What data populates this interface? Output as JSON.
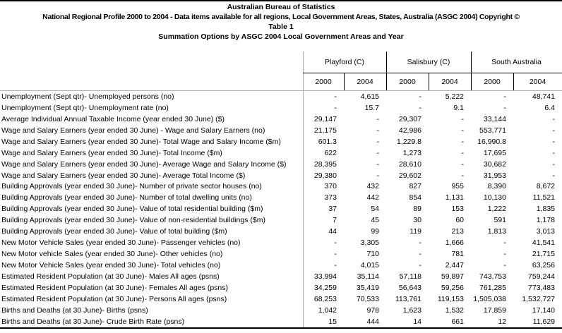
{
  "titles": {
    "line1": "Australian Bureau of Statistics",
    "line2": "National Regional Profile 2000 to 2004 - Data items available for all regions, Local Government Areas, States, Australia (ASGC 2004) Copyright ©",
    "line3": "Table 1",
    "line4": "Summation Options by ASGC 2004 Local Government Areas and Year"
  },
  "colors": {
    "grid_gray": "#b0b0b0",
    "border_black": "#000000",
    "background": "#ffffff",
    "text": "#000000"
  },
  "table": {
    "groups": [
      {
        "label": "Playford (C)",
        "years": [
          "2000",
          "2004"
        ]
      },
      {
        "label": "Salisbury (C)",
        "years": [
          "2000",
          "2004"
        ]
      },
      {
        "label": "South Australia",
        "years": [
          "2000",
          "2004"
        ]
      }
    ],
    "rows": [
      {
        "label": "Unemployment (Sept qtr)- Unemployed persons (no)",
        "values": [
          "-",
          "4,615",
          "-",
          "5,222",
          "-",
          "48,741"
        ]
      },
      {
        "label": "Unemployment (Sept qtr)- Unemployment rate (no)",
        "values": [
          "-",
          "15.7",
          "-",
          "9.1",
          "-",
          "6.4"
        ]
      },
      {
        "label": "Average Individual Annual Taxable Income (year ended 30 June) ($)",
        "values": [
          "29,147",
          "-",
          "29,307",
          "-",
          "33,144",
          "-"
        ]
      },
      {
        "label": "Wage and Salary Earners (year ended 30 June) - Wage and Salary Earners (no)",
        "values": [
          "21,175",
          "-",
          "42,986",
          "-",
          "553,771",
          "-"
        ]
      },
      {
        "label": "Wage and Salary Earners (year ended 30 June)- Total Wage and Salary Income ($m)",
        "values": [
          "601.3",
          "-",
          "1,229.8",
          "-",
          "16,990.8",
          "-"
        ]
      },
      {
        "label": "Wage and Salary Earners (year ended 30 June)- Total Income ($m)",
        "values": [
          "622",
          "-",
          "1,273",
          "-",
          "17,695",
          "-"
        ]
      },
      {
        "label": "Wage and Salary Earners (year ended 30 June)- Average Wage and Salary Income ($)",
        "values": [
          "28,395",
          "-",
          "28,610",
          "-",
          "30,682",
          "-"
        ]
      },
      {
        "label": "Wage and Salary Earners (year ended 30 June)- Average Total Income ($)",
        "values": [
          "29,380",
          "-",
          "29,602",
          "-",
          "31,953",
          "-"
        ]
      },
      {
        "label": "Building Approvals (year ended 30 June)- Number of private sector houses (no)",
        "values": [
          "370",
          "432",
          "827",
          "955",
          "8,390",
          "8,672"
        ]
      },
      {
        "label": "Building Approvals (year ended 30 June)- Number of total dwelling units (no)",
        "values": [
          "373",
          "442",
          "854",
          "1,131",
          "10,130",
          "11,521"
        ]
      },
      {
        "label": "Building Approvals (year ended 30 June)- Value of total residential building ($m)",
        "values": [
          "37",
          "54",
          "89",
          "153",
          "1,222",
          "1,835"
        ]
      },
      {
        "label": "Building Approvals (year ended 30 June)- Value of non-residential buildings ($m)",
        "values": [
          "7",
          "45",
          "30",
          "60",
          "591",
          "1,178"
        ]
      },
      {
        "label": "Building Approvals (year ended 30 June)- Value of total building ($m)",
        "values": [
          "44",
          "99",
          "119",
          "213",
          "1,813",
          "3,013"
        ]
      },
      {
        "label": "New Motor Vehicle Sales (year ended 30 June)- Passenger vehicles (no)",
        "values": [
          "-",
          "3,305",
          "-",
          "1,666",
          "-",
          "41,541"
        ]
      },
      {
        "label": "New Motor vehicle Sales (year ended 30 June)- Other vehicles (no)",
        "values": [
          "-",
          "710",
          "-",
          "781",
          "-",
          "21,715"
        ]
      },
      {
        "label": "New Motor Vehicle Sales (year ended 30 June)- Total vehicles (no)",
        "values": [
          "-",
          "4,015",
          "-",
          "2,447",
          "-",
          "63,256"
        ]
      },
      {
        "label": "Estimated Resident Population (at 30 June)- Males All ages (psns)",
        "values": [
          "33,994",
          "35,114",
          "57,118",
          "59,897",
          "743,753",
          "759,244"
        ]
      },
      {
        "label": "Estimated Resident Population (at 30 June)- Females All ages (psns)",
        "values": [
          "34,259",
          "35,419",
          "56,643",
          "59,256",
          "761,285",
          "773,483"
        ]
      },
      {
        "label": "Estimated Resident Population (at 30 June)- Persons All ages (psns)",
        "values": [
          "68,253",
          "70,533",
          "113,761",
          "119,153",
          "1,505,038",
          "1,532,727"
        ]
      },
      {
        "label": "Births and Deaths (at 30 June)- Births (psns)",
        "values": [
          "1,042",
          "978",
          "1,623",
          "1,532",
          "17,859",
          "17,140"
        ]
      },
      {
        "label": "Births and Deaths (at 30 June)- Crude Birth Rate (psns)",
        "values": [
          "15",
          "444",
          "14",
          "661",
          "12",
          "11,629"
        ]
      }
    ]
  }
}
